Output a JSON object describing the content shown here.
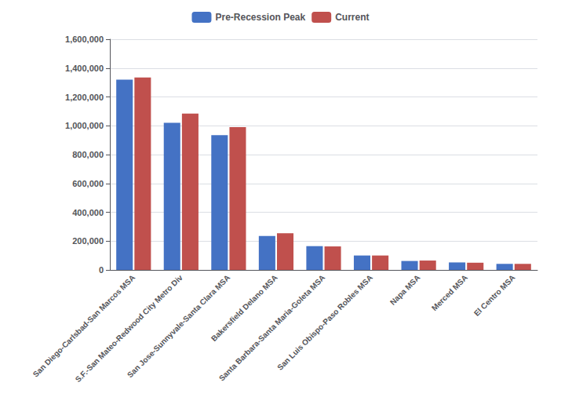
{
  "chart_data": {
    "type": "bar",
    "categories": [
      "San Diego-Carlsbad-San Marcos MSA",
      "S.F.-San Mateo-Redwood City Metro Div",
      "San Jose-Sunnyvale-Santa Clara MSA",
      "Bakersfield Delano MSA",
      "Santa Barbara-Santa Maria-Goleta MSA",
      "San Luis Obispo-Paso Robles MSA",
      "Napa MSA",
      "Merced MSA",
      "El Centro MSA"
    ],
    "series": [
      {
        "name": "Pre-Recession Peak",
        "color": "#4472C4",
        "values": [
          1320000,
          1020000,
          935000,
          235000,
          165000,
          100000,
          62000,
          52000,
          42000
        ]
      },
      {
        "name": "Current",
        "color": "#C0504D",
        "values": [
          1335000,
          1085000,
          990000,
          255000,
          163000,
          100000,
          65000,
          50000,
          42000
        ]
      }
    ],
    "ylim": [
      0,
      1600000
    ],
    "yticks": [
      0,
      {
        "value": 200000,
        "label": "200,000"
      },
      {
        "value": 400000,
        "label": "400,000"
      },
      {
        "value": 600000,
        "label": "600,000"
      },
      {
        "value": 800000,
        "label": "800,000"
      },
      {
        "value": 1000000,
        "label": "1,000,000"
      },
      {
        "value": 1200000,
        "label": "1,200,000"
      },
      {
        "value": 1400000,
        "label": "1,400,000"
      },
      {
        "value": 1600000,
        "label": "1,600,000"
      }
    ],
    "grid": true,
    "legend": "top"
  }
}
